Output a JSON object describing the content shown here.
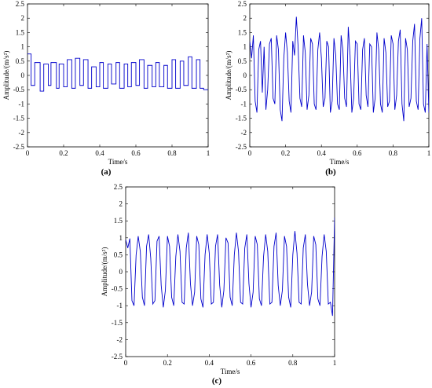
{
  "chart_data": [
    {
      "id": "a",
      "panel_label": "(a)",
      "type": "line",
      "title": "",
      "xlabel": "Time/s",
      "ylabel": "Amplitude/(m/s²)",
      "xlim": [
        0,
        1
      ],
      "ylim": [
        -2.5,
        2.5
      ],
      "x_ticks": [
        0,
        0.2,
        0.4,
        0.6,
        0.8,
        1
      ],
      "y_ticks": [
        -2.5,
        -2,
        -1.5,
        -1,
        -0.5,
        0,
        0.5,
        1,
        1.5,
        2,
        2.5
      ],
      "grid": false,
      "series": [
        {
          "color": "#0000cc",
          "description": "square-wave-like signal of alternating high/low plateaus",
          "x": [
            0,
            0.02,
            0.02,
            0.04,
            0.04,
            0.07,
            0.07,
            0.09,
            0.09,
            0.115,
            0.115,
            0.13,
            0.13,
            0.16,
            0.16,
            0.175,
            0.175,
            0.2,
            0.2,
            0.22,
            0.22,
            0.245,
            0.245,
            0.265,
            0.265,
            0.29,
            0.29,
            0.31,
            0.31,
            0.335,
            0.335,
            0.355,
            0.355,
            0.38,
            0.38,
            0.4,
            0.4,
            0.42,
            0.42,
            0.445,
            0.445,
            0.465,
            0.465,
            0.49,
            0.49,
            0.51,
            0.51,
            0.535,
            0.535,
            0.555,
            0.555,
            0.575,
            0.575,
            0.6,
            0.6,
            0.62,
            0.62,
            0.645,
            0.645,
            0.665,
            0.665,
            0.69,
            0.69,
            0.71,
            0.71,
            0.73,
            0.73,
            0.755,
            0.755,
            0.775,
            0.775,
            0.8,
            0.8,
            0.82,
            0.82,
            0.845,
            0.845,
            0.865,
            0.865,
            0.89,
            0.89,
            0.91,
            0.91,
            0.935,
            0.935,
            0.955,
            0.955,
            0.975,
            0.975,
            1
          ],
          "y": [
            0.75,
            0.75,
            -0.35,
            -0.35,
            0.45,
            0.45,
            -0.55,
            -0.55,
            0.4,
            0.4,
            -0.35,
            -0.35,
            0.45,
            0.45,
            -0.45,
            -0.45,
            0.4,
            0.4,
            -0.4,
            -0.4,
            0.55,
            0.55,
            -0.45,
            -0.45,
            0.6,
            0.6,
            -0.35,
            -0.35,
            0.55,
            0.55,
            -0.45,
            -0.45,
            0.3,
            0.3,
            -0.4,
            -0.4,
            0.45,
            0.45,
            -0.45,
            -0.45,
            0.4,
            0.4,
            -0.3,
            -0.3,
            0.45,
            0.45,
            -0.45,
            -0.45,
            0.4,
            0.4,
            -0.4,
            -0.4,
            0.45,
            0.45,
            -0.35,
            -0.35,
            0.55,
            0.55,
            -0.45,
            -0.45,
            0.35,
            0.35,
            -0.4,
            -0.4,
            0.45,
            0.45,
            -0.4,
            -0.4,
            0.35,
            0.35,
            -0.45,
            -0.45,
            0.55,
            0.55,
            -0.45,
            -0.45,
            0.5,
            0.5,
            -0.35,
            -0.35,
            0.65,
            0.65,
            -0.45,
            -0.45,
            0.55,
            0.55,
            -0.45,
            -0.45,
            -0.5,
            -0.5
          ]
        }
      ]
    },
    {
      "id": "b",
      "panel_label": "(b)",
      "type": "line",
      "title": "",
      "xlabel": "Time/s",
      "ylabel": "Amplitude/(m/s²)",
      "xlim": [
        0,
        1
      ],
      "ylim": [
        -2.5,
        2.5
      ],
      "x_ticks": [
        0,
        0.2,
        0.4,
        0.6,
        0.8,
        1
      ],
      "y_ticks": [
        -2.5,
        -2,
        -1.5,
        -1,
        -0.5,
        0,
        0.5,
        1,
        1.5,
        2,
        2.5
      ],
      "grid": false,
      "series": [
        {
          "color": "#0000cc",
          "description": "noisy oscillating signal with spikes up to about 2 and down to about -1.6",
          "x": [
            0,
            0.01,
            0.02,
            0.03,
            0.04,
            0.05,
            0.06,
            0.07,
            0.08,
            0.09,
            0.1,
            0.11,
            0.12,
            0.13,
            0.14,
            0.15,
            0.16,
            0.17,
            0.18,
            0.19,
            0.2,
            0.21,
            0.22,
            0.23,
            0.24,
            0.25,
            0.26,
            0.27,
            0.28,
            0.29,
            0.3,
            0.31,
            0.32,
            0.33,
            0.34,
            0.35,
            0.36,
            0.37,
            0.38,
            0.39,
            0.4,
            0.41,
            0.42,
            0.43,
            0.44,
            0.45,
            0.46,
            0.47,
            0.48,
            0.49,
            0.5,
            0.51,
            0.52,
            0.53,
            0.54,
            0.55,
            0.56,
            0.57,
            0.58,
            0.59,
            0.6,
            0.61,
            0.62,
            0.63,
            0.64,
            0.65,
            0.66,
            0.67,
            0.68,
            0.69,
            0.7,
            0.71,
            0.72,
            0.73,
            0.74,
            0.75,
            0.76,
            0.77,
            0.78,
            0.79,
            0.8,
            0.81,
            0.82,
            0.83,
            0.84,
            0.85,
            0.86,
            0.87,
            0.88,
            0.89,
            0.9,
            0.91,
            0.92,
            0.93,
            0.94,
            0.95,
            0.96,
            0.97,
            0.98,
            0.99,
            1
          ],
          "y": [
            1.2,
            0.6,
            1.4,
            -0.9,
            -1.3,
            0.9,
            1.2,
            -0.6,
            1.0,
            -1.2,
            -0.5,
            1.1,
            1.3,
            -0.8,
            -1.0,
            1.4,
            0.9,
            -1.2,
            -1.6,
            0.6,
            1.5,
            0.8,
            -0.9,
            -1.3,
            1.2,
            0.7,
            2.05,
            1.0,
            -0.8,
            -1.1,
            1.4,
            0.8,
            -1.2,
            -0.7,
            1.3,
            1.1,
            -1.0,
            -1.2,
            0.9,
            1.5,
            0.6,
            -1.1,
            -0.8,
            1.2,
            1.0,
            -1.3,
            -0.9,
            1.3,
            0.7,
            -1.0,
            -1.2,
            1.4,
            0.9,
            -0.8,
            -1.1,
            1.7,
            0.7,
            -1.3,
            -0.8,
            1.2,
            1.1,
            -1.0,
            -1.2,
            0.9,
            1.3,
            -0.7,
            -1.1,
            1.1,
            1.0,
            -1.3,
            -0.8,
            1.5,
            0.9,
            -1.0,
            -1.3,
            1.3,
            0.8,
            -1.1,
            -0.9,
            1.4,
            1.1,
            -1.2,
            -0.7,
            1.2,
            1.6,
            -1.0,
            -1.6,
            1.3,
            0.9,
            -1.1,
            -0.8,
            1.2,
            1.8,
            -0.9,
            -1.2,
            1.3,
            2.0,
            -1.0,
            -1.3,
            1.1,
            -1.3
          ]
        }
      ]
    },
    {
      "id": "c",
      "panel_label": "(c)",
      "type": "line",
      "title": "",
      "xlabel": "Time/s",
      "ylabel": "Amplitude/(m/s²)",
      "xlim": [
        0,
        1
      ],
      "ylim": [
        -2.5,
        2.5
      ],
      "x_ticks": [
        0,
        0.2,
        0.4,
        0.6,
        0.8,
        1
      ],
      "y_ticks": [
        -2.5,
        -2,
        -1.5,
        -1,
        -0.5,
        0,
        0.5,
        1,
        1.5,
        2,
        2.5
      ],
      "grid": false,
      "series": [
        {
          "color": "#0000cc",
          "description": "periodic oscillation with two harmonics, amplitude about 1.1",
          "x": [
            0,
            0.01,
            0.02,
            0.03,
            0.04,
            0.05,
            0.06,
            0.07,
            0.08,
            0.09,
            0.1,
            0.11,
            0.12,
            0.13,
            0.14,
            0.15,
            0.16,
            0.17,
            0.18,
            0.19,
            0.2,
            0.21,
            0.22,
            0.23,
            0.24,
            0.25,
            0.26,
            0.27,
            0.28,
            0.29,
            0.3,
            0.31,
            0.32,
            0.33,
            0.34,
            0.35,
            0.36,
            0.37,
            0.38,
            0.39,
            0.4,
            0.41,
            0.42,
            0.43,
            0.44,
            0.45,
            0.46,
            0.47,
            0.48,
            0.49,
            0.5,
            0.51,
            0.52,
            0.53,
            0.54,
            0.55,
            0.56,
            0.57,
            0.58,
            0.59,
            0.6,
            0.61,
            0.62,
            0.63,
            0.64,
            0.65,
            0.66,
            0.67,
            0.68,
            0.69,
            0.7,
            0.71,
            0.72,
            0.73,
            0.74,
            0.75,
            0.76,
            0.77,
            0.78,
            0.79,
            0.8,
            0.81,
            0.82,
            0.83,
            0.84,
            0.85,
            0.86,
            0.87,
            0.88,
            0.89,
            0.9,
            0.91,
            0.92,
            0.93,
            0.94,
            0.95,
            0.96,
            0.97,
            0.98,
            0.99,
            1
          ],
          "y": [
            0.95,
            0.7,
            0.98,
            -0.85,
            -1.0,
            0.5,
            1.05,
            0.6,
            -0.75,
            -1.0,
            0.75,
            1.1,
            0.4,
            -0.95,
            -0.85,
            0.9,
            1.05,
            -0.4,
            -1.05,
            -0.55,
            1.05,
            0.75,
            -0.75,
            -1.0,
            0.45,
            1.1,
            0.6,
            -0.9,
            -0.95,
            0.7,
            1.15,
            -0.35,
            -1.0,
            -0.6,
            1.05,
            0.8,
            -0.8,
            -1.05,
            0.5,
            1.1,
            0.55,
            -0.95,
            -0.9,
            0.75,
            1.1,
            -0.4,
            -1.05,
            -0.55,
            1.0,
            0.85,
            -0.75,
            -1.0,
            0.5,
            1.15,
            0.6,
            -0.9,
            -0.95,
            0.7,
            1.1,
            -0.35,
            -1.05,
            -0.6,
            1.05,
            0.8,
            -0.8,
            -1.0,
            0.45,
            1.1,
            0.6,
            -0.95,
            -0.9,
            0.75,
            1.15,
            -0.4,
            -1.0,
            -0.55,
            1.05,
            0.75,
            -0.75,
            -1.05,
            0.5,
            1.2,
            0.55,
            -0.9,
            -0.95,
            0.7,
            1.1,
            -0.35,
            -1.0,
            -0.6,
            1.05,
            0.8,
            -0.8,
            -1.0,
            0.45,
            1.1,
            0.6,
            -0.95,
            -0.9,
            -1.3,
            1.6
          ]
        }
      ]
    }
  ]
}
